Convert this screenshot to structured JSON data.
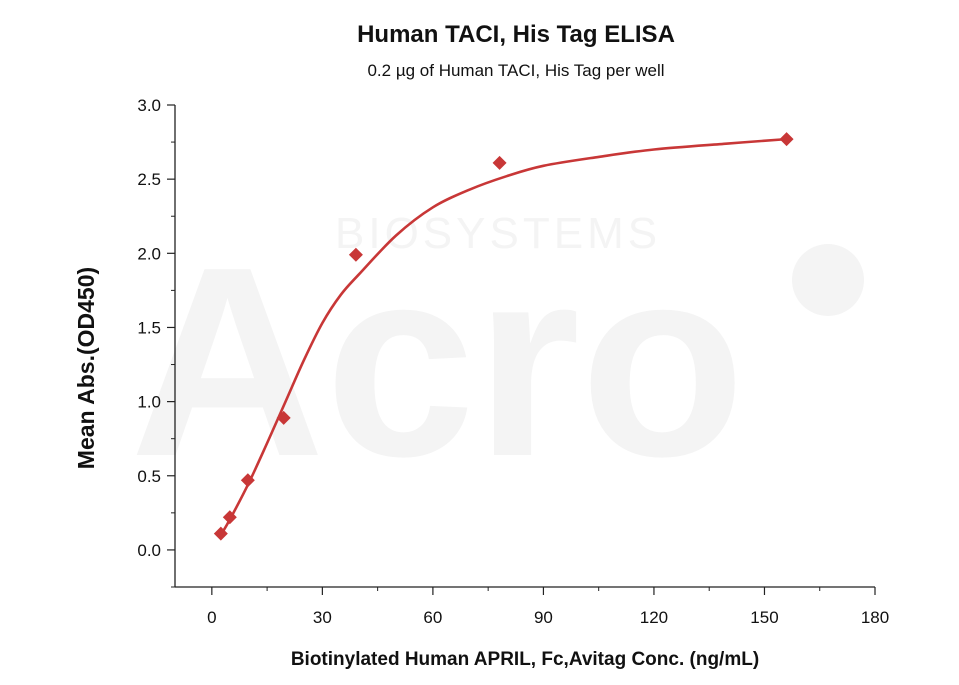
{
  "chart_data": {
    "type": "scatter",
    "title": "Human TACI, His Tag ELISA",
    "subtitle": "0.2 µg of Human TACI, His Tag per well",
    "xlabel": "Biotinylated Human APRIL, Fc,Avitag Conc. (ng/mL)",
    "ylabel": "Mean Abs.(OD450)",
    "xlim": [
      -10,
      180
    ],
    "ylim": [
      -0.25,
      3.0
    ],
    "x_ticks": [
      "0",
      "30",
      "60",
      "90",
      "120",
      "150",
      "180"
    ],
    "y_ticks": [
      "0.0",
      "0.5",
      "1.0",
      "1.5",
      "2.0",
      "2.5",
      "3.0"
    ],
    "grid": false,
    "legend": "none",
    "watermark": {
      "brand": "Acro",
      "sub": "BIOSYSTEMS"
    },
    "series": [
      {
        "points": [
          {
            "x": 2.44,
            "y": 0.11
          },
          {
            "x": 4.88,
            "y": 0.22
          },
          {
            "x": 9.77,
            "y": 0.47
          },
          {
            "x": 19.5,
            "y": 0.89
          },
          {
            "x": 39.1,
            "y": 1.99
          },
          {
            "x": 78.1,
            "y": 2.61
          },
          {
            "x": 156,
            "y": 2.77
          }
        ],
        "fit_curve": [
          {
            "x": 2.44,
            "y": 0.1
          },
          {
            "x": 5,
            "y": 0.21
          },
          {
            "x": 10,
            "y": 0.45
          },
          {
            "x": 15,
            "y": 0.72
          },
          {
            "x": 20,
            "y": 1.0
          },
          {
            "x": 25,
            "y": 1.28
          },
          {
            "x": 30,
            "y": 1.53
          },
          {
            "x": 35,
            "y": 1.72
          },
          {
            "x": 40,
            "y": 1.86
          },
          {
            "x": 50,
            "y": 2.12
          },
          {
            "x": 60,
            "y": 2.31
          },
          {
            "x": 70,
            "y": 2.43
          },
          {
            "x": 80,
            "y": 2.52
          },
          {
            "x": 90,
            "y": 2.59
          },
          {
            "x": 105,
            "y": 2.65
          },
          {
            "x": 120,
            "y": 2.7
          },
          {
            "x": 140,
            "y": 2.74
          },
          {
            "x": 156,
            "y": 2.77
          }
        ],
        "color": "#c83737"
      }
    ]
  }
}
